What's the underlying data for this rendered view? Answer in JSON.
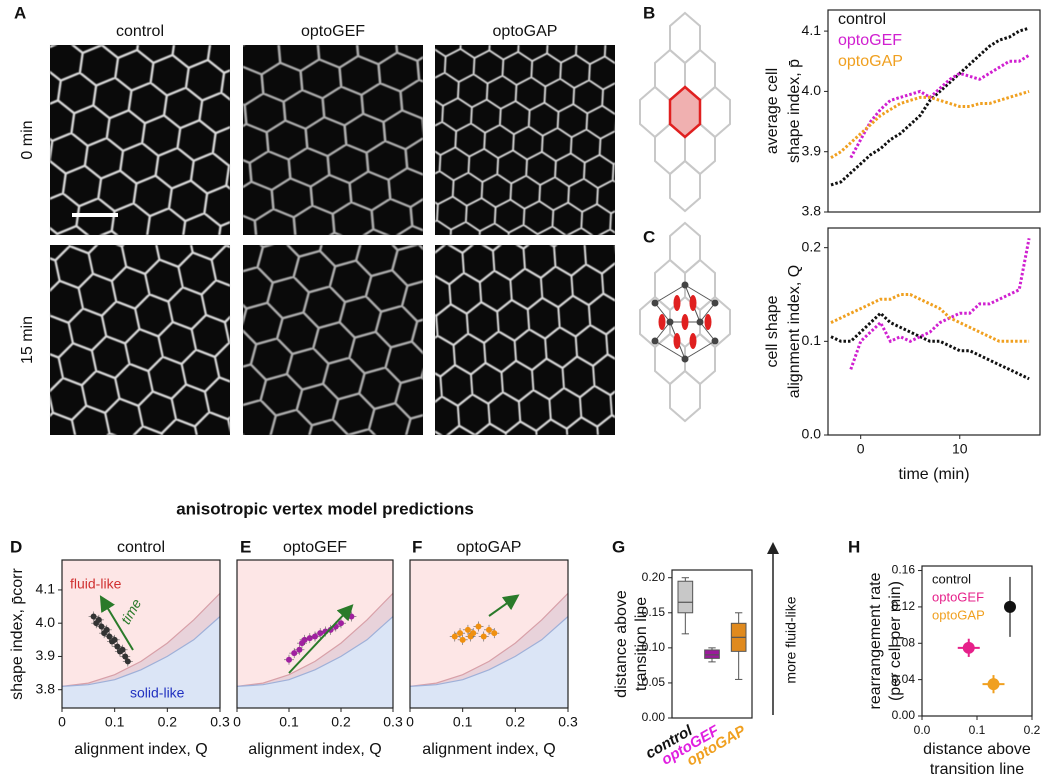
{
  "panel_a": {
    "label": "A",
    "columns": [
      "control",
      "optoGEF",
      "optoGAP"
    ],
    "rows": [
      "0 min",
      "15 min"
    ]
  },
  "heading": "anisotropic vertex model predictions",
  "chart_data": [
    {
      "type": "line",
      "panel": "B",
      "x": [
        -3,
        -2,
        -1,
        0,
        1,
        2,
        3,
        4,
        5,
        6,
        7,
        8,
        9,
        10,
        11,
        12,
        13,
        14,
        15,
        16,
        17
      ],
      "xlim": [
        -3.3,
        18.1
      ],
      "ylim": [
        3.8,
        4.135
      ],
      "yticks": [
        3.8,
        3.9,
        {
          "value": 4,
          "label": "4.0"
        },
        4.1
      ],
      "ylabel": [
        "average cell",
        "shape index, p̄"
      ],
      "series": [
        {
          "name": "control",
          "color": "#111111",
          "values": [
            3.845,
            3.85,
            3.865,
            3.88,
            3.895,
            3.905,
            3.92,
            3.93,
            3.945,
            3.96,
            3.985,
            4.0,
            4.015,
            4.03,
            4.045,
            4.06,
            4.075,
            4.085,
            4.09,
            4.1,
            4.105
          ]
        },
        {
          "name": "optoGEF",
          "color": "#d020d0",
          "values": [
            null,
            null,
            3.89,
            3.92,
            3.95,
            3.97,
            3.985,
            3.99,
            3.995,
            4.0,
            3.99,
            4.005,
            4.02,
            4.03,
            4.025,
            4.02,
            4.03,
            4.04,
            4.05,
            4.05,
            4.06
          ]
        },
        {
          "name": "optoGAP",
          "color": "#f0a020",
          "values": [
            3.89,
            3.9,
            3.915,
            3.93,
            3.945,
            3.96,
            3.97,
            3.98,
            3.985,
            3.99,
            3.99,
            3.985,
            3.98,
            3.975,
            3.975,
            3.98,
            3.98,
            3.985,
            3.99,
            3.995,
            4.0
          ]
        }
      ]
    },
    {
      "type": "line",
      "panel": "C",
      "x": [
        -3,
        -2,
        -1,
        0,
        1,
        2,
        3,
        4,
        5,
        6,
        7,
        8,
        9,
        10,
        11,
        12,
        13,
        14,
        15,
        16,
        17
      ],
      "xlim": [
        -3.3,
        18.1
      ],
      "xticks": [
        0,
        10
      ],
      "xlabel": "time (min)",
      "ylim": [
        0,
        0.221
      ],
      "yticks": [
        {
          "value": 0,
          "label": "0.0"
        },
        0.1,
        0.2
      ],
      "ylabel": [
        "cell shape",
        "alignment index, Q"
      ],
      "series": [
        {
          "color": "#111111",
          "values": [
            0.105,
            0.1,
            0.1,
            0.11,
            0.12,
            0.13,
            0.12,
            0.115,
            0.11,
            0.105,
            0.1,
            0.1,
            0.095,
            0.09,
            0.09,
            0.085,
            0.08,
            0.075,
            0.07,
            0.065,
            0.06
          ]
        },
        {
          "color": "#d020d0",
          "values": [
            null,
            null,
            0.07,
            0.1,
            0.11,
            0.12,
            0.1,
            0.105,
            0.1,
            0.105,
            0.11,
            0.12,
            0.125,
            0.13,
            0.13,
            0.14,
            0.14,
            0.145,
            0.15,
            0.155,
            0.21
          ]
        },
        {
          "color": "#f0a020",
          "values": [
            0.12,
            0.125,
            0.13,
            0.135,
            0.14,
            0.145,
            0.145,
            0.15,
            0.15,
            0.145,
            0.14,
            0.135,
            0.125,
            0.12,
            0.115,
            0.11,
            0.105,
            0.1,
            0.1,
            0.1,
            0.1
          ]
        }
      ]
    },
    {
      "type": "scatter",
      "panel": "D",
      "title": "control",
      "color": "#333333",
      "xlim": [
        0,
        0.3
      ],
      "xticks": [
        0,
        0.1,
        0.2,
        0.3
      ],
      "xlabel": "alignment index, Q",
      "ylim": [
        3.745,
        4.19
      ],
      "yticks": [
        3.8,
        3.9,
        {
          "value": 4,
          "label": "4.0"
        },
        4.1
      ],
      "ylabel": "shape index, p̄corr",
      "annotations": [
        "fluid-like",
        "solid-like",
        "time"
      ],
      "transition_x": [
        0,
        0.05,
        0.1,
        0.15,
        0.2,
        0.25,
        0.3
      ],
      "transition_upper": [
        3.81,
        3.82,
        3.845,
        3.885,
        3.94,
        4.01,
        4.09
      ],
      "transition_lower": [
        3.81,
        3.815,
        3.83,
        3.86,
        3.9,
        3.95,
        4.02
      ],
      "x": [
        0.06,
        0.065,
        0.07,
        0.075,
        0.08,
        0.085,
        0.09,
        0.095,
        0.1,
        0.105,
        0.11,
        0.115,
        0.12,
        0.125
      ],
      "values": [
        4.02,
        4.0,
        4.01,
        3.99,
        3.97,
        3.98,
        3.96,
        3.945,
        3.95,
        3.93,
        3.915,
        3.92,
        3.9,
        3.885
      ]
    },
    {
      "type": "scatter",
      "panel": "E",
      "title": "optoGEF",
      "color": "#a020a0",
      "xlim": [
        0,
        0.3
      ],
      "xticks": [
        0,
        0.1,
        0.2,
        0.3
      ],
      "xlabel": "alignment index, Q",
      "ylim": [
        3.745,
        4.19
      ],
      "transition_x": [
        0,
        0.05,
        0.1,
        0.15,
        0.2,
        0.25,
        0.3
      ],
      "transition_upper": [
        3.81,
        3.82,
        3.845,
        3.885,
        3.94,
        4.01,
        4.09
      ],
      "transition_lower": [
        3.81,
        3.815,
        3.83,
        3.86,
        3.9,
        3.95,
        4.02
      ],
      "x": [
        0.1,
        0.11,
        0.12,
        0.125,
        0.13,
        0.14,
        0.15,
        0.16,
        0.17,
        0.18,
        0.19,
        0.2,
        0.22
      ],
      "values": [
        3.89,
        3.91,
        3.92,
        3.94,
        3.95,
        3.955,
        3.96,
        3.97,
        3.975,
        3.98,
        3.99,
        4.0,
        4.02
      ]
    },
    {
      "type": "scatter",
      "panel": "F",
      "title": "optoGAP",
      "color": "#f09010",
      "xlim": [
        0,
        0.3
      ],
      "xticks": [
        0,
        0.1,
        0.2,
        0.3
      ],
      "xlabel": "alignment index, Q",
      "ylim": [
        3.745,
        4.19
      ],
      "transition_x": [
        0,
        0.05,
        0.1,
        0.15,
        0.2,
        0.25,
        0.3
      ],
      "transition_upper": [
        3.81,
        3.82,
        3.845,
        3.885,
        3.94,
        4.01,
        4.09
      ],
      "transition_lower": [
        3.81,
        3.815,
        3.83,
        3.86,
        3.9,
        3.95,
        4.02
      ],
      "x": [
        0.085,
        0.095,
        0.1,
        0.11,
        0.115,
        0.12,
        0.13,
        0.14,
        0.15,
        0.16
      ],
      "values": [
        3.96,
        3.97,
        3.95,
        3.98,
        3.96,
        3.97,
        3.99,
        3.96,
        3.98,
        3.97
      ]
    },
    {
      "type": "box",
      "panel": "G",
      "categories": [
        "control",
        "optoGEF",
        "optoGAP"
      ],
      "colors": [
        "#c8c8c8",
        "#9b1a9b",
        "#e08a1e"
      ],
      "label_colors": [
        "#111111",
        "#e020e0",
        "#f0a020"
      ],
      "boxes": [
        {
          "whislo": 0.12,
          "q1": 0.15,
          "med": 0.165,
          "q3": 0.195,
          "whishi": 0.2
        },
        {
          "whislo": 0.08,
          "q1": 0.085,
          "med": 0.09,
          "q3": 0.097,
          "whishi": 0.1
        },
        {
          "whislo": 0.055,
          "q1": 0.095,
          "med": 0.115,
          "q3": 0.135,
          "whishi": 0.15
        }
      ],
      "ylim": [
        0,
        0.211
      ],
      "yticks": [
        {
          "value": 0,
          "label": "0.00"
        },
        {
          "value": 0.05,
          "label": "0.05"
        },
        {
          "value": 0.1,
          "label": "0.10"
        },
        {
          "value": 0.15,
          "label": "0.15"
        },
        {
          "value": 0.2,
          "label": "0.20"
        }
      ],
      "ylabel": [
        "distance above",
        "transition line"
      ],
      "annotations": [
        "more fluid-like"
      ]
    },
    {
      "type": "scatter",
      "panel": "H",
      "xlim": [
        0,
        0.2
      ],
      "xticks": [
        {
          "value": 0,
          "label": "0.0"
        },
        0.1,
        0.2
      ],
      "xlabel": [
        "distance above",
        "transition line"
      ],
      "ylim": [
        0,
        0.165
      ],
      "yticks": [
        {
          "value": 0,
          "label": "0.00"
        },
        0.04,
        0.08,
        0.12,
        0.16
      ],
      "ylabel": [
        "rearrangement rate",
        "(per cell per min)"
      ],
      "series": [
        {
          "name": "control",
          "color": "#111111",
          "x": [
            0.16
          ],
          "y": [
            0.12
          ],
          "xerr": [
            0.008
          ],
          "yerr": [
            0.033
          ]
        },
        {
          "name": "optoGEF",
          "color": "#e6208a",
          "x": [
            0.085
          ],
          "y": [
            0.075
          ],
          "xerr": [
            0.02
          ],
          "yerr": [
            0.01
          ]
        },
        {
          "name": "optoGAP",
          "color": "#f0a020",
          "x": [
            0.13
          ],
          "y": [
            0.035
          ],
          "xerr": [
            0.02
          ],
          "yerr": [
            0.01
          ]
        }
      ]
    }
  ]
}
